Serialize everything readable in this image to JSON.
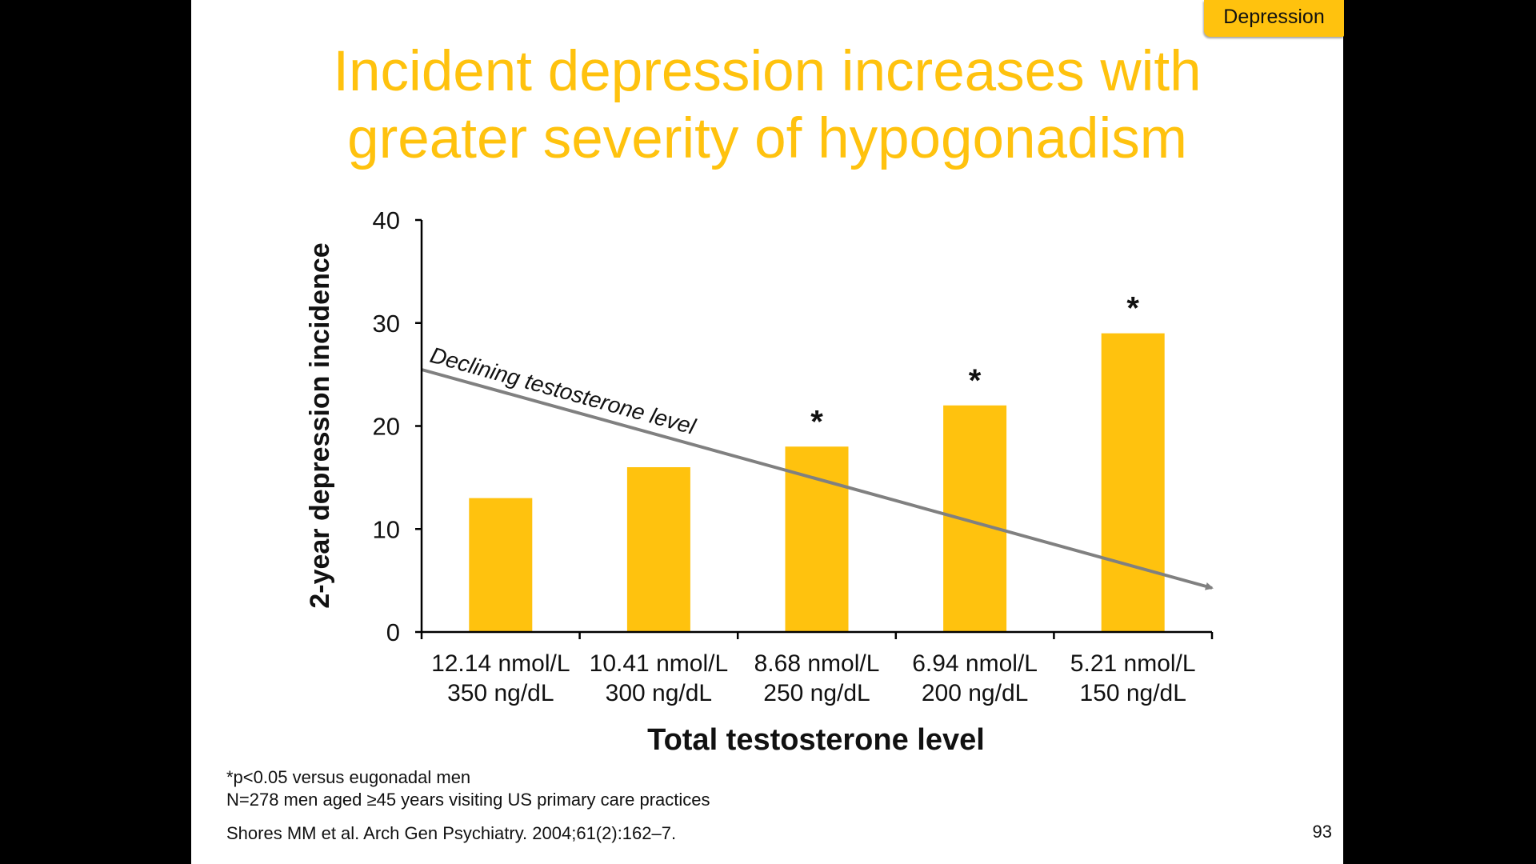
{
  "tag": "Depression",
  "title_lines": [
    "Incident depression increases with",
    "greater severity of hypogonadism"
  ],
  "chart_data": {
    "type": "bar",
    "categories": [
      [
        "12.14 nmol/L",
        "350 ng/dL"
      ],
      [
        "10.41 nmol/L",
        "300 ng/dL"
      ],
      [
        "8.68 nmol/L",
        "250 ng/dL"
      ],
      [
        "6.94 nmol/L",
        "200 ng/dL"
      ],
      [
        "5.21 nmol/L",
        "150 ng/dL"
      ]
    ],
    "values": [
      13,
      16,
      18,
      22,
      29
    ],
    "significant": [
      false,
      false,
      true,
      true,
      true
    ],
    "significance_marker": "*",
    "xlabel": "Total testosterone level",
    "ylabel": "2-year depression incidence",
    "ylim": [
      0,
      40
    ],
    "yticks": [
      0,
      10,
      20,
      30,
      40
    ],
    "grid": false,
    "legend": "none",
    "bar_color": "#FFC20E",
    "annotation": {
      "text": "Declining testosterone level",
      "arrow_color": "#808080"
    }
  },
  "footnotes": [
    "*p<0.05 versus eugonadal men",
    "N=278 men aged ≥45 years visiting US primary care practices"
  ],
  "reference": "Shores MM et al. Arch Gen Psychiatry. 2004;61(2):162–7.",
  "page_number": "93",
  "colors": {
    "accent": "#FFC20E",
    "background": "#FFFFFF",
    "frame": "#000000"
  }
}
